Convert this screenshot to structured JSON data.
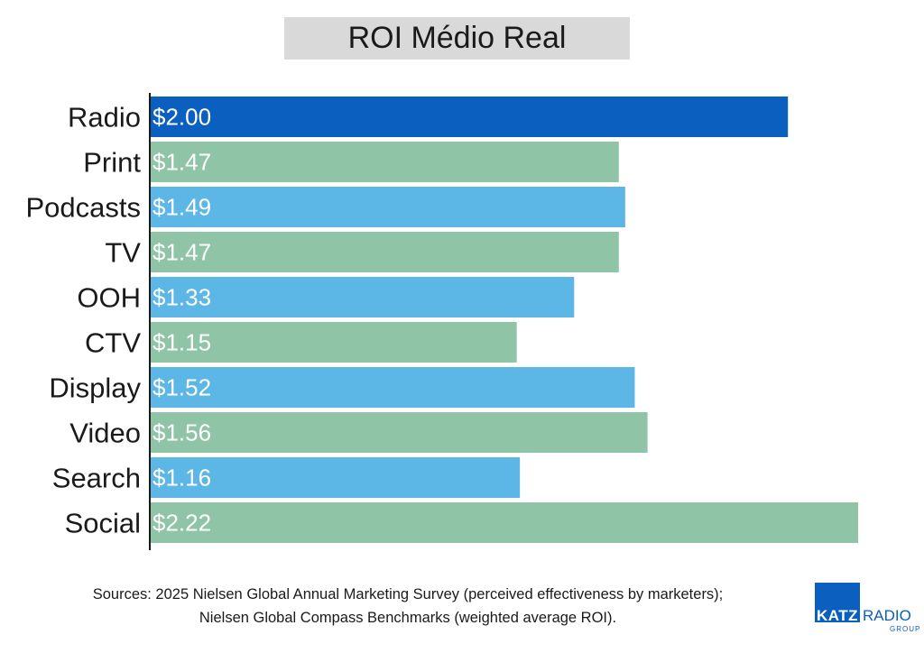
{
  "chart_data": {
    "type": "bar",
    "orientation": "horizontal",
    "title": "ROI Médio Real",
    "categories": [
      "Radio",
      "Print",
      "Podcasts",
      "TV",
      "OOH",
      "CTV",
      "Display",
      "Video",
      "Search",
      "Social"
    ],
    "values": [
      2.0,
      1.47,
      1.49,
      1.47,
      1.33,
      1.15,
      1.52,
      1.56,
      1.16,
      2.22
    ],
    "data_labels": [
      "$2.00",
      "$1.47",
      "$1.49",
      "$1.47",
      "$1.33",
      "$1.15",
      "$1.52",
      "$1.56",
      "$1.16",
      "$2.22"
    ],
    "bar_colors": [
      "#0b5fbf",
      "#8fc4a6",
      "#5cb6e6",
      "#8fc4a6",
      "#5cb6e6",
      "#8fc4a6",
      "#5cb6e6",
      "#8fc4a6",
      "#5cb6e6",
      "#8fc4a6"
    ],
    "xlim": [
      0,
      2.22
    ],
    "grid": false,
    "legend": "none"
  },
  "sources": {
    "line1": "Sources: 2025 Nielsen Global Annual Marketing Survey (perceived effectiveness by marketers);",
    "line2": "Nielsen Global Compass Benchmarks (weighted average ROI)."
  },
  "logo": {
    "katz": "KATZ",
    "radio": "RADIO",
    "group": "GROUP",
    "color": "#0b5fbf"
  }
}
